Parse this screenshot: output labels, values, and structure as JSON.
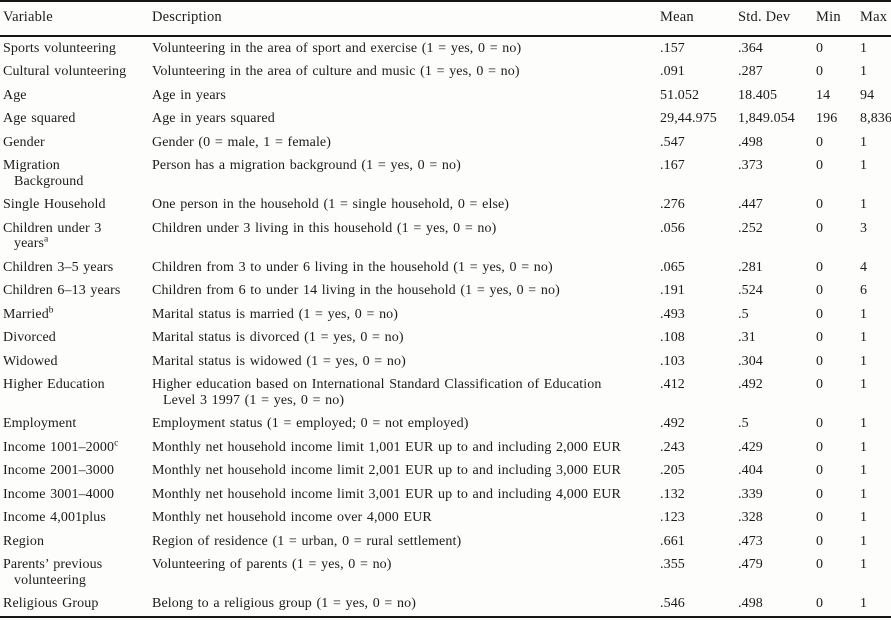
{
  "table": {
    "headers": [
      "Variable",
      "Description",
      "Mean",
      "Std. Dev",
      "Min",
      "Max"
    ],
    "rows": [
      {
        "variable": "Sports volunteering",
        "description": "Volunteering in the area of sport and exercise (1 = yes, 0 = no)",
        "mean": ".157",
        "std_dev": ".364",
        "min": "0",
        "max": "1"
      },
      {
        "variable": "Cultural volunteering",
        "description": "Volunteering in the area of culture and music (1 = yes, 0 = no)",
        "mean": ".091",
        "std_dev": ".287",
        "min": "0",
        "max": "1"
      },
      {
        "variable": "Age",
        "description": "Age in years",
        "mean": "51.052",
        "std_dev": "18.405",
        "min": "14",
        "max": "94"
      },
      {
        "variable": "Age squared",
        "description": "Age in years squared",
        "mean": "29,44.975",
        "std_dev": "1,849.054",
        "min": "196",
        "max": "8,836"
      },
      {
        "variable": "Gender",
        "description": "Gender (0 = male, 1 = female)",
        "mean": ".547",
        "std_dev": ".498",
        "min": "0",
        "max": "1"
      },
      {
        "variable": "Migration",
        "variable_line2": "Background",
        "description": "Person has a migration background (1 = yes, 0 = no)",
        "mean": ".167",
        "std_dev": ".373",
        "min": "0",
        "max": "1"
      },
      {
        "variable": "Single Household",
        "description": "One person in the household (1 = single household, 0 = else)",
        "mean": ".276",
        "std_dev": ".447",
        "min": "0",
        "max": "1"
      },
      {
        "variable": "Children under 3",
        "variable_line2": "years",
        "variable_line2_sup": "a",
        "description": "Children under 3 living in this household (1 = yes, 0 = no)",
        "mean": ".056",
        "std_dev": ".252",
        "min": "0",
        "max": "3"
      },
      {
        "variable": "Children 3–5 years",
        "description": "Children from 3 to under 6 living in the household (1 = yes, 0 = no)",
        "mean": ".065",
        "std_dev": ".281",
        "min": "0",
        "max": "4"
      },
      {
        "variable": "Children 6–13 years",
        "description": "Children from 6 to under 14 living in the household (1 = yes, 0 = no)",
        "mean": ".191",
        "std_dev": ".524",
        "min": "0",
        "max": "6"
      },
      {
        "variable": "Married",
        "variable_sup": "b",
        "description": "Marital status is married (1 = yes, 0 = no)",
        "mean": ".493",
        "std_dev": ".5",
        "min": "0",
        "max": "1"
      },
      {
        "variable": "Divorced",
        "description": "Marital status is divorced (1 = yes, 0 = no)",
        "mean": ".108",
        "std_dev": ".31",
        "min": "0",
        "max": "1"
      },
      {
        "variable": "Widowed",
        "description": "Marital status is widowed (1 = yes, 0 = no)",
        "mean": ".103",
        "std_dev": ".304",
        "min": "0",
        "max": "1"
      },
      {
        "variable": "Higher Education",
        "description": "Higher education based on International Standard Classification of Education",
        "description_line2": "Level 3 1997 (1 = yes, 0 = no)",
        "mean": ".412",
        "std_dev": ".492",
        "min": "0",
        "max": "1"
      },
      {
        "variable": "Employment",
        "description": "Employment status (1 = employed; 0 = not employed)",
        "mean": ".492",
        "std_dev": ".5",
        "min": "0",
        "max": "1"
      },
      {
        "variable": "Income 1001–2000",
        "variable_sup": "c",
        "description": "Monthly net household income limit 1,001 EUR up to and including 2,000 EUR",
        "mean": ".243",
        "std_dev": ".429",
        "min": "0",
        "max": "1"
      },
      {
        "variable": "Income 2001–3000",
        "description": "Monthly net household income limit 2,001 EUR up to and including 3,000 EUR",
        "mean": ".205",
        "std_dev": ".404",
        "min": "0",
        "max": "1"
      },
      {
        "variable": "Income 3001–4000",
        "description": "Monthly net household income limit 3,001 EUR up to and including 4,000 EUR",
        "mean": ".132",
        "std_dev": ".339",
        "min": "0",
        "max": "1"
      },
      {
        "variable": "Income 4,001plus",
        "description": "Monthly net household income over 4,000 EUR",
        "mean": ".123",
        "std_dev": ".328",
        "min": "0",
        "max": "1"
      },
      {
        "variable": "Region",
        "description": "Region of residence (1 = urban, 0 = rural settlement)",
        "mean": ".661",
        "std_dev": ".473",
        "min": "0",
        "max": "1"
      },
      {
        "variable": "Parents’ previous",
        "variable_line2": "volunteering",
        "description": "Volunteering of parents (1 = yes, 0 = no)",
        "mean": ".355",
        "std_dev": ".479",
        "min": "0",
        "max": "1"
      },
      {
        "variable": "Religious Group",
        "description": "Belong to a religious group (1 = yes, 0 = no)",
        "mean": ".546",
        "std_dev": ".498",
        "min": "0",
        "max": "1"
      }
    ]
  }
}
